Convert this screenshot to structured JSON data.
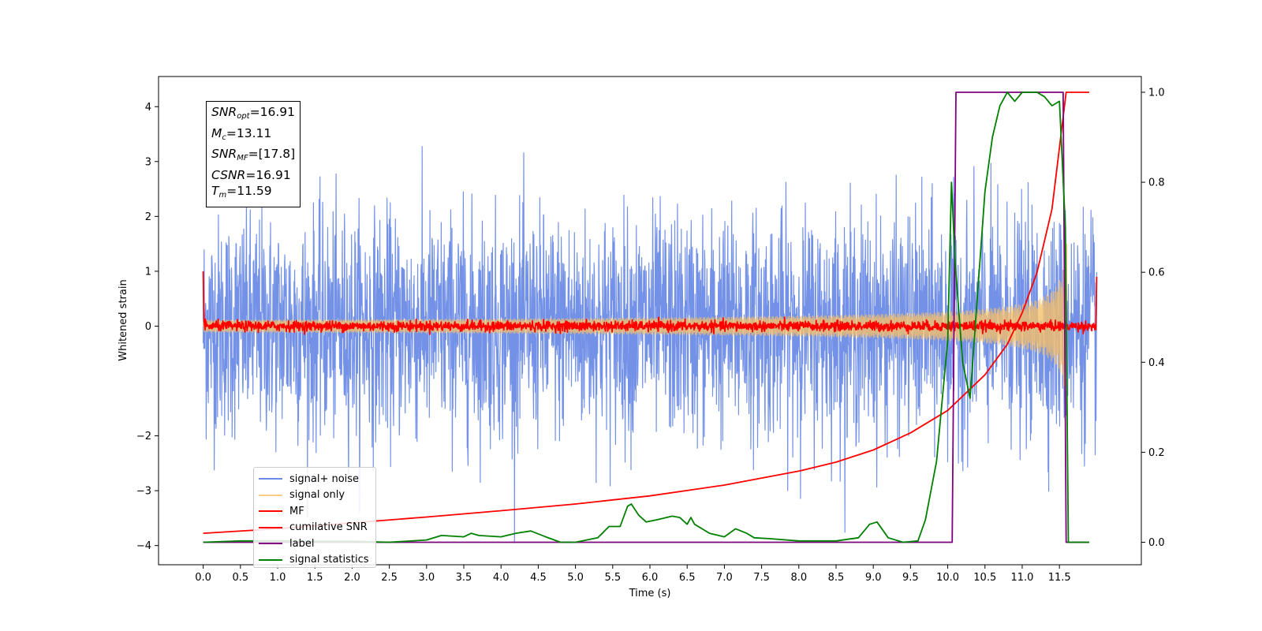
{
  "chart_data": {
    "type": "line",
    "xlabel": "Time (s)",
    "ylabel": "Whitened strain",
    "xlim": [
      -0.6,
      12.6
    ],
    "ylim": [
      -4.35,
      4.55
    ],
    "y2lim": [
      -0.05,
      1.035
    ],
    "xticks": [
      "0.0",
      "0.5",
      "1.0",
      "1.5",
      "2.0",
      "2.5",
      "3.0",
      "3.5",
      "4.0",
      "4.5",
      "5.0",
      "5.5",
      "6.0",
      "6.5",
      "7.0",
      "7.5",
      "8.0",
      "8.5",
      "9.0",
      "9.5",
      "10.0",
      "10.5",
      "11.0",
      "11.5"
    ],
    "yticks": [
      "4",
      "3",
      "2",
      "1",
      "0",
      "−2",
      "−3",
      "−4"
    ],
    "y2ticks": [
      "1.0",
      "0.8",
      "0.6",
      "0.4",
      "0.2",
      "0.0"
    ],
    "annotation": [
      {
        "sym": "SNR",
        "sub": "opt",
        "value": "=16.91"
      },
      {
        "sym": "M",
        "sub": "c",
        "value": "=13.11"
      },
      {
        "sym": "SNR",
        "sub": "MF",
        "value": "=[17.8]"
      },
      {
        "sym": "CSNR",
        "sub": "",
        "value": "=16.91"
      },
      {
        "sym": "T",
        "sub": "m",
        "value": "=11.59"
      }
    ],
    "legend_position": "lower-left",
    "series": [
      {
        "name": "signal+ noise",
        "color": "#6c8be6",
        "axis": "left",
        "kind": "noise",
        "x_range": [
          0,
          12.0
        ],
        "std": 1.0
      },
      {
        "name": "signal only",
        "color": "#f5bf6a",
        "axis": "left",
        "kind": "chirp",
        "x_range": [
          0,
          11.6
        ],
        "amp_at_end": 1.6
      },
      {
        "name": "MF",
        "color": "#ff0000",
        "axis": "left",
        "kind": "matched_filter",
        "x_range": [
          0,
          12.0
        ]
      },
      {
        "name": "cumilative SNR",
        "color": "#ff0000",
        "axis": "right",
        "x": [
          0.0,
          1.0,
          2.0,
          3.0,
          4.0,
          5.0,
          6.0,
          7.0,
          8.0,
          8.5,
          9.0,
          9.5,
          10.0,
          10.5,
          10.8,
          11.0,
          11.2,
          11.4,
          11.59,
          11.6,
          11.9
        ],
        "y": [
          0.02,
          0.03,
          0.043,
          0.056,
          0.07,
          0.085,
          0.103,
          0.127,
          0.158,
          0.178,
          0.205,
          0.243,
          0.293,
          0.372,
          0.44,
          0.51,
          0.6,
          0.74,
          1.0,
          1.0,
          1.0
        ]
      },
      {
        "name": "label",
        "color": "#800080",
        "axis": "right",
        "x": [
          0.0,
          10.06,
          10.11,
          11.55,
          11.59,
          11.9
        ],
        "y": [
          0.0,
          0.0,
          1.0,
          1.0,
          0.0,
          0.0
        ]
      },
      {
        "name": "signal statistics",
        "color": "#008000",
        "axis": "right",
        "x": [
          0.0,
          0.5,
          1.0,
          1.5,
          2.0,
          2.5,
          3.0,
          3.2,
          3.5,
          3.6,
          3.7,
          4.0,
          4.2,
          4.4,
          4.6,
          4.8,
          5.0,
          5.3,
          5.45,
          5.6,
          5.7,
          5.75,
          5.85,
          5.95,
          6.1,
          6.3,
          6.4,
          6.5,
          6.55,
          6.6,
          6.7,
          6.8,
          7.0,
          7.15,
          7.3,
          7.4,
          7.6,
          8.0,
          8.5,
          8.8,
          8.95,
          9.05,
          9.2,
          9.4,
          9.6,
          9.7,
          9.85,
          10.0,
          10.05,
          10.1,
          10.2,
          10.3,
          10.4,
          10.5,
          10.6,
          10.7,
          10.8,
          10.9,
          11.0,
          11.2,
          11.3,
          11.4,
          11.5,
          11.58,
          11.62,
          11.9
        ],
        "y": [
          0.0,
          0.003,
          0.003,
          0.002,
          0.002,
          0.0,
          0.005,
          0.015,
          0.012,
          0.02,
          0.015,
          0.012,
          0.02,
          0.025,
          0.012,
          0.0,
          0.0,
          0.01,
          0.035,
          0.035,
          0.08,
          0.085,
          0.06,
          0.045,
          0.05,
          0.058,
          0.055,
          0.04,
          0.055,
          0.04,
          0.03,
          0.02,
          0.012,
          0.03,
          0.02,
          0.01,
          0.008,
          0.003,
          0.003,
          0.01,
          0.04,
          0.045,
          0.01,
          0.0,
          0.003,
          0.05,
          0.18,
          0.45,
          0.8,
          0.62,
          0.4,
          0.32,
          0.55,
          0.78,
          0.9,
          0.97,
          1.0,
          0.98,
          1.0,
          1.0,
          0.99,
          0.97,
          0.98,
          0.7,
          0.0,
          0.0
        ]
      }
    ]
  }
}
